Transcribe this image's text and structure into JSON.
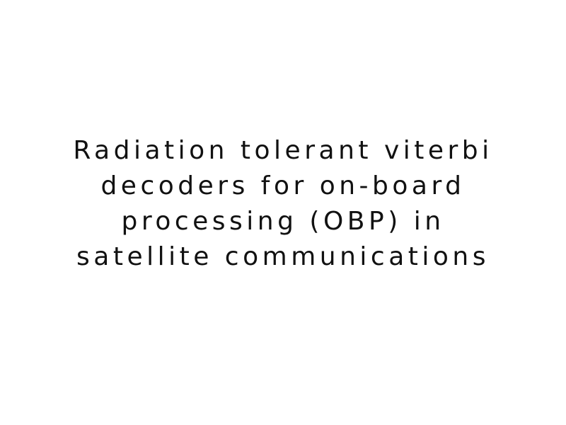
{
  "title": {
    "lines": [
      "Radiation tolerant viterbi",
      "decoders for on-board",
      "processing (OBP) in",
      "satellite communications"
    ]
  },
  "colors": {
    "background": "#ffffff",
    "text": "#111111"
  }
}
